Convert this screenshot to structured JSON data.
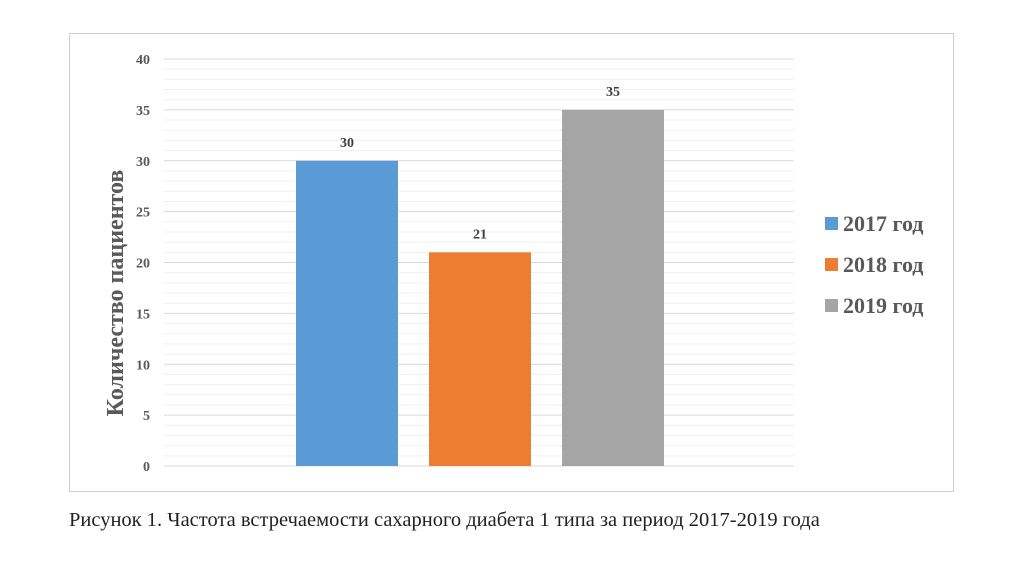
{
  "chart_data": {
    "type": "bar",
    "title": "",
    "xlabel": "",
    "ylabel": "Количество пациентов",
    "ylim": [
      0,
      40
    ],
    "yticks": [
      0,
      5,
      10,
      15,
      20,
      25,
      30,
      35,
      40
    ],
    "grid": true,
    "legend_position": "right",
    "series": [
      {
        "name": "2017 год",
        "values": [
          30
        ],
        "color": "#5b9bd5"
      },
      {
        "name": "2018 год",
        "values": [
          21
        ],
        "color": "#ed7d31"
      },
      {
        "name": "2019 год",
        "values": [
          35
        ],
        "color": "#a5a5a5"
      }
    ]
  },
  "caption": "Рисунок 1. Частота встречаемости сахарного диабета 1 типа за период 2017-2019 года"
}
